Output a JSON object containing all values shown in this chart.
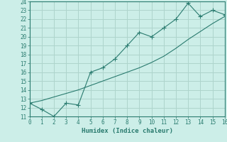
{
  "xlabel": "Humidex (Indice chaleur)",
  "line1_x": [
    0,
    1,
    2,
    3,
    4,
    5,
    6,
    7,
    8,
    9,
    10,
    11,
    12,
    13,
    14,
    15,
    16
  ],
  "line1_y": [
    12.5,
    11.8,
    11.0,
    12.5,
    12.3,
    16.0,
    16.5,
    17.5,
    19.0,
    20.5,
    20.0,
    21.0,
    22.0,
    23.8,
    22.3,
    23.0,
    22.5
  ],
  "line2_x": [
    0,
    1,
    2,
    3,
    4,
    5,
    6,
    7,
    8,
    9,
    10,
    11,
    12,
    13,
    14,
    15,
    16
  ],
  "line2_y": [
    12.5,
    12.8,
    13.2,
    13.6,
    14.0,
    14.5,
    15.0,
    15.5,
    16.0,
    16.5,
    17.1,
    17.8,
    18.7,
    19.7,
    20.6,
    21.5,
    22.3
  ],
  "color": "#2a7b6f",
  "background_color": "#cceee8",
  "grid_color": "#aed4cc",
  "ylim": [
    11,
    24
  ],
  "xlim": [
    0,
    16
  ],
  "yticks": [
    11,
    12,
    13,
    14,
    15,
    16,
    17,
    18,
    19,
    20,
    21,
    22,
    23,
    24
  ],
  "xticks": [
    0,
    1,
    2,
    3,
    4,
    5,
    6,
    7,
    8,
    9,
    10,
    11,
    12,
    13,
    14,
    15,
    16
  ],
  "tick_fontsize": 5.5,
  "xlabel_fontsize": 6.5
}
